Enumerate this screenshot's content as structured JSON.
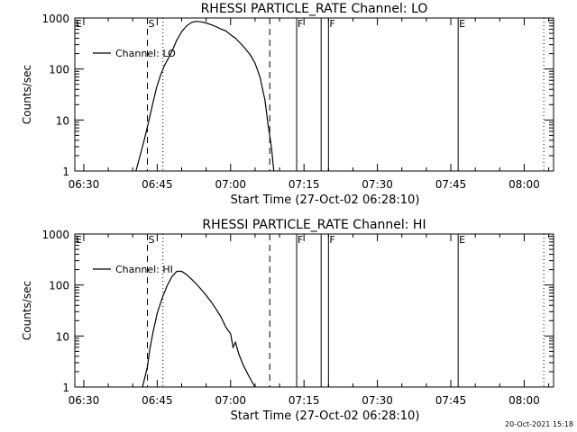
{
  "chart_data": [
    {
      "type": "line",
      "title": "RHESSI PARTICLE_RATE Channel: LO",
      "xlabel": "Start Time (27-Oct-02 06:28:10)",
      "ylabel": "Counts/sec",
      "y_scale": "log",
      "ylim": [
        1,
        1000
      ],
      "xlim": [
        "06:28:10",
        "08:06:00"
      ],
      "x_ticks": [
        "06:30",
        "06:45",
        "07:00",
        "07:15",
        "07:30",
        "07:45",
        "08:00"
      ],
      "y_ticks": [
        "1",
        "10",
        "100",
        "1000"
      ],
      "legend": {
        "placement": "top-left"
      },
      "grid": false,
      "series": [
        {
          "name": "Channel: LO",
          "x": [
            "06:40:40",
            "06:41:30",
            "06:42:20",
            "06:43:10",
            "06:44:00",
            "06:44:50",
            "06:45:40",
            "06:46:30",
            "06:47:20",
            "06:48:10",
            "06:49:00",
            "06:50:00",
            "06:51:00",
            "06:52:00",
            "06:53:00",
            "06:54:00",
            "06:55:00",
            "06:56:00",
            "06:57:00",
            "06:58:00",
            "06:59:00",
            "07:00:00",
            "07:01:00",
            "07:02:00",
            "07:03:00",
            "07:04:00",
            "07:05:00",
            "07:06:00",
            "07:07:00",
            "07:07:40",
            "07:08:20",
            "07:08:50"
          ],
          "values": [
            1.0,
            2.0,
            4.0,
            8.5,
            19,
            42,
            75,
            118,
            165,
            240,
            370,
            540,
            700,
            820,
            860,
            840,
            800,
            740,
            680,
            610,
            560,
            470,
            400,
            320,
            250,
            190,
            130,
            70,
            25,
            8,
            3,
            1
          ]
        }
      ]
    },
    {
      "type": "line",
      "title": "RHESSI PARTICLE_RATE Channel: HI",
      "xlabel": "Start Time (27-Oct-02 06:28:10)",
      "ylabel": "Counts/sec",
      "y_scale": "log",
      "ylim": [
        1,
        1000
      ],
      "xlim": [
        "06:28:10",
        "08:06:00"
      ],
      "x_ticks": [
        "06:30",
        "06:45",
        "07:00",
        "07:15",
        "07:30",
        "07:45",
        "08:00"
      ],
      "y_ticks": [
        "1",
        "10",
        "100",
        "1000"
      ],
      "legend": {
        "placement": "top-left"
      },
      "grid": false,
      "series": [
        {
          "name": "Channel: HI",
          "x": [
            "06:42:00",
            "06:43:00",
            "06:43:30",
            "06:44:10",
            "06:45:00",
            "06:46:00",
            "06:47:00",
            "06:48:00",
            "06:49:00",
            "06:50:00",
            "06:51:00",
            "06:52:00",
            "06:53:00",
            "06:54:00",
            "06:55:00",
            "06:56:00",
            "06:57:00",
            "06:58:00",
            "06:59:00",
            "07:00:00",
            "07:00:30",
            "07:01:00",
            "07:01:40",
            "07:02:30",
            "07:03:30",
            "07:04:30",
            "07:05:00"
          ],
          "values": [
            1.0,
            2.5,
            5.5,
            12,
            28,
            55,
            95,
            145,
            185,
            185,
            160,
            130,
            105,
            82,
            63,
            47,
            34,
            24,
            15,
            11,
            6,
            7.5,
            4.5,
            2.8,
            1.8,
            1.2,
            1.0
          ]
        }
      ]
    }
  ],
  "markers": {
    "dashed": [
      "06:43:00",
      "07:08:00"
    ],
    "dotted": [
      "06:46:10",
      "08:04:00"
    ],
    "solid": [
      "07:13:30",
      "07:18:30",
      "07:20:00",
      "07:46:30"
    ],
    "letters": [
      {
        "text": "E",
        "time": "06:28:10"
      },
      {
        "text": "S",
        "time": "06:43:00"
      },
      {
        "text": "F",
        "time": "07:13:30"
      },
      {
        "text": "F",
        "time": "07:20:00"
      },
      {
        "text": "E",
        "time": "07:46:30"
      }
    ]
  },
  "footer": {
    "timestamp": "20-Oct-2021 15:18"
  }
}
